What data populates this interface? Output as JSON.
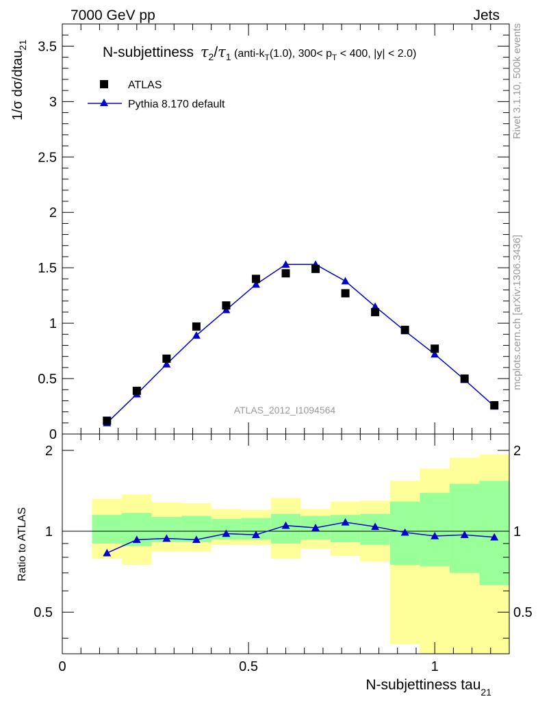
{
  "header": {
    "left": "7000 GeV pp",
    "right": "Jets"
  },
  "side_text": {
    "top": "Rivet 3.1.10,  500k events",
    "bottom": "mcplots.cern.ch [arXiv:1306.3436]"
  },
  "colors": {
    "data": "#000000",
    "mc": "#0000cc",
    "band_inner": "#99ff99",
    "band_outer": "#ffff99"
  },
  "chart_data": [
    {
      "type": "scatter",
      "title": {
        "main": "N-subjettiness",
        "t": "τ",
        "sub2": "2",
        "slash": "/",
        "sub1": "1",
        "extra_a": " (anti-k",
        "extra_t": "T",
        "extra_b": "(1.0), 300< p",
        "extra_c": " < 400, |y| < 2.0)"
      },
      "ylabel": "1/σ dσ/dtau",
      "ylabel_sub": "21",
      "watermark": "ATLAS_2012_I1094564",
      "xlim": [
        0,
        1.2
      ],
      "ylim": [
        0,
        3.7
      ],
      "yticks": [
        0,
        0.5,
        1,
        1.5,
        2,
        2.5,
        3,
        3.5
      ],
      "ytick_labels": [
        "0",
        "0.5",
        "1",
        "1.5",
        "2",
        "2.5",
        "3",
        "3.5"
      ],
      "legend_position": "top-left",
      "series": [
        {
          "name": "ATLAS",
          "marker": "square",
          "x": [
            0.12,
            0.2,
            0.28,
            0.36,
            0.44,
            0.52,
            0.6,
            0.68,
            0.76,
            0.84,
            0.92,
            1.0,
            1.08,
            1.16
          ],
          "y": [
            0.12,
            0.39,
            0.68,
            0.97,
            1.16,
            1.4,
            1.45,
            1.49,
            1.27,
            1.1,
            0.94,
            0.77,
            0.5,
            0.26
          ]
        },
        {
          "name": "Pythia 8.170 default",
          "marker": "triangle",
          "x": [
            0.12,
            0.2,
            0.28,
            0.36,
            0.44,
            0.52,
            0.6,
            0.68,
            0.76,
            0.84,
            0.92,
            1.0,
            1.08,
            1.16
          ],
          "y": [
            0.1,
            0.36,
            0.63,
            0.89,
            1.12,
            1.35,
            1.53,
            1.53,
            1.38,
            1.15,
            0.93,
            0.72,
            0.49,
            0.25
          ]
        }
      ]
    },
    {
      "type": "line",
      "ylabel": "Ratio to ATLAS",
      "xlabel": "N-subjettiness tau",
      "xlabel_sub": "21",
      "xlim": [
        0,
        1.2
      ],
      "ylim": [
        0.35,
        2.3
      ],
      "xticks": [
        0,
        0.5,
        1
      ],
      "xtick_labels": [
        "0",
        "0.5",
        "1"
      ],
      "yticks": [
        0.5,
        1,
        2
      ],
      "ytick_labels": [
        "0.5",
        "1",
        "2"
      ],
      "reference_line": 1,
      "bins": {
        "edges": [
          0.08,
          0.16,
          0.24,
          0.32,
          0.4,
          0.48,
          0.56,
          0.64,
          0.72,
          0.8,
          0.88,
          0.96,
          1.04,
          1.12,
          1.2
        ],
        "inner_low": [
          0.9,
          0.88,
          0.91,
          0.91,
          0.93,
          0.93,
          0.9,
          0.93,
          0.91,
          0.89,
          0.75,
          0.74,
          0.7,
          0.63
        ],
        "inner_high": [
          1.15,
          1.17,
          1.13,
          1.14,
          1.11,
          1.12,
          1.16,
          1.14,
          1.15,
          1.16,
          1.29,
          1.39,
          1.5,
          1.54
        ],
        "outer_low": [
          0.79,
          0.75,
          0.84,
          0.84,
          0.89,
          0.89,
          0.79,
          0.86,
          0.81,
          0.77,
          0.38,
          0.33,
          0.29,
          0.28
        ],
        "outer_high": [
          1.32,
          1.37,
          1.28,
          1.27,
          1.21,
          1.2,
          1.33,
          1.21,
          1.29,
          1.3,
          1.54,
          1.71,
          1.88,
          1.93
        ]
      },
      "series": [
        {
          "name": "Pythia 8.170 default",
          "x": [
            0.12,
            0.2,
            0.28,
            0.36,
            0.44,
            0.52,
            0.6,
            0.68,
            0.76,
            0.84,
            0.92,
            1.0,
            1.08,
            1.16
          ],
          "y": [
            0.83,
            0.93,
            0.94,
            0.93,
            0.98,
            0.97,
            1.05,
            1.03,
            1.08,
            1.04,
            0.99,
            0.96,
            0.97,
            0.95
          ]
        }
      ]
    }
  ]
}
